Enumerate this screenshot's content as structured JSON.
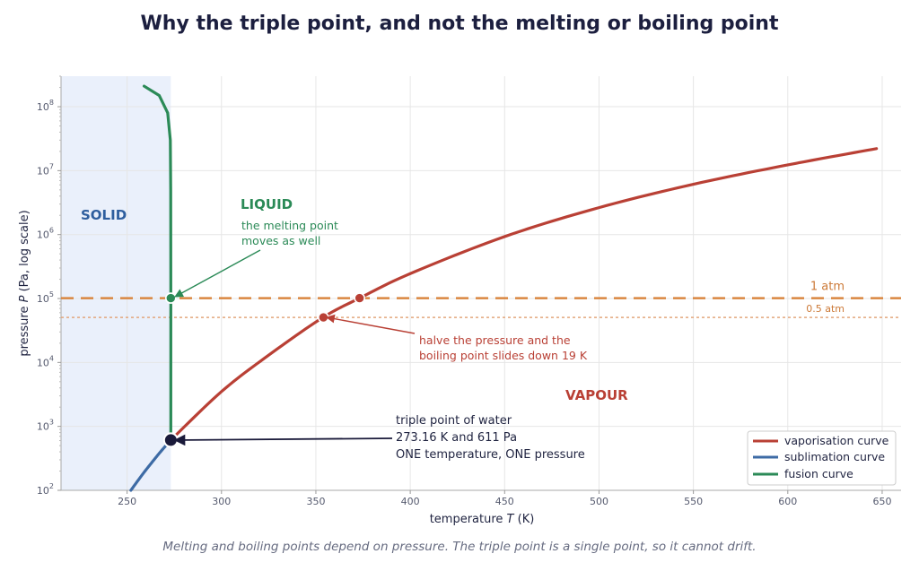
{
  "title": "Why the triple point, and not the melting or boiling point",
  "caption": "Melting and boiling points depend on pressure. The triple point is a single point, so it cannot drift.",
  "chart_data": {
    "type": "line",
    "xlabel_prefix": "temperature",
    "xlabel_var": "T",
    "xlabel_unit": "(K)",
    "ylabel_prefix": "pressure",
    "ylabel_var": "P",
    "ylabel_unit": "(Pa, log scale)",
    "xlim": [
      215,
      660
    ],
    "ylim": [
      100,
      300000000
    ],
    "y_scale": "log",
    "grid": true,
    "x_ticks": [
      250,
      300,
      350,
      400,
      450,
      500,
      550,
      600,
      650
    ],
    "y_ticks": [
      {
        "value": 100,
        "base": "10",
        "exp": "2"
      },
      {
        "value": 1000,
        "base": "10",
        "exp": "3"
      },
      {
        "value": 10000,
        "base": "10",
        "exp": "4"
      },
      {
        "value": 100000,
        "base": "10",
        "exp": "5"
      },
      {
        "value": 1000000,
        "base": "10",
        "exp": "6"
      },
      {
        "value": 10000000,
        "base": "10",
        "exp": "7"
      },
      {
        "value": 100000000,
        "base": "10",
        "exp": "8"
      }
    ],
    "solid_region_x_range": [
      215,
      273.16
    ],
    "series": [
      {
        "name": "vaporisation curve",
        "color": "#b94035",
        "points": [
          [
            273.16,
            611
          ],
          [
            300,
            3500
          ],
          [
            325,
            13000
          ],
          [
            353.5,
            50000
          ],
          [
            373.15,
            101325
          ],
          [
            400,
            245000
          ],
          [
            450,
            930000
          ],
          [
            500,
            2640000
          ],
          [
            550,
            6120000
          ],
          [
            600,
            12300000
          ],
          [
            647,
            22100000
          ]
        ]
      },
      {
        "name": "sublimation curve",
        "color": "#3d6ba5",
        "points": [
          [
            252,
            100
          ],
          [
            258,
            175
          ],
          [
            263,
            270
          ],
          [
            268,
            410
          ],
          [
            273.16,
            611
          ]
        ]
      },
      {
        "name": "fusion curve",
        "color": "#2b8a57",
        "points": [
          [
            273.16,
            611
          ],
          [
            273.16,
            100000
          ],
          [
            273.1,
            5000000
          ],
          [
            272.9,
            30000000
          ],
          [
            271.5,
            80000000
          ],
          [
            267,
            150000000
          ],
          [
            259,
            210000000
          ]
        ]
      }
    ],
    "reference_lines": [
      {
        "label": "1 atm",
        "value": 101325,
        "color": "#d98640"
      },
      {
        "label": "0.5 atm",
        "value": 50662,
        "color": "#e2a67c"
      }
    ],
    "markers": [
      {
        "series": "fusion curve",
        "x": 273.15,
        "y": 101325,
        "color": "#2b8a57"
      },
      {
        "series": "vaporisation curve",
        "x": 373.15,
        "y": 101325,
        "color": "#b94035"
      },
      {
        "series": "vaporisation curve",
        "x": 354,
        "y": 50662,
        "color": "#b94035"
      }
    ],
    "triple_point": {
      "x": 273.16,
      "y": 611,
      "color": "#1a1a3a"
    },
    "region_labels": [
      {
        "text": "SOLID",
        "color": "#2e5e9e"
      },
      {
        "text": "LIQUID",
        "color": "#2b8a57"
      },
      {
        "text": "VAPOUR",
        "color": "#b94035"
      }
    ],
    "annotations": {
      "melting_moves": [
        "the melting point",
        "moves as well"
      ],
      "boiling_slides": [
        "halve the pressure and the",
        "boiling point slides down 19 K"
      ],
      "triple_point": [
        "triple point of water",
        "273.16 K and 611 Pa",
        "ONE temperature, ONE pressure"
      ]
    },
    "legend_position": "bottom-right"
  }
}
